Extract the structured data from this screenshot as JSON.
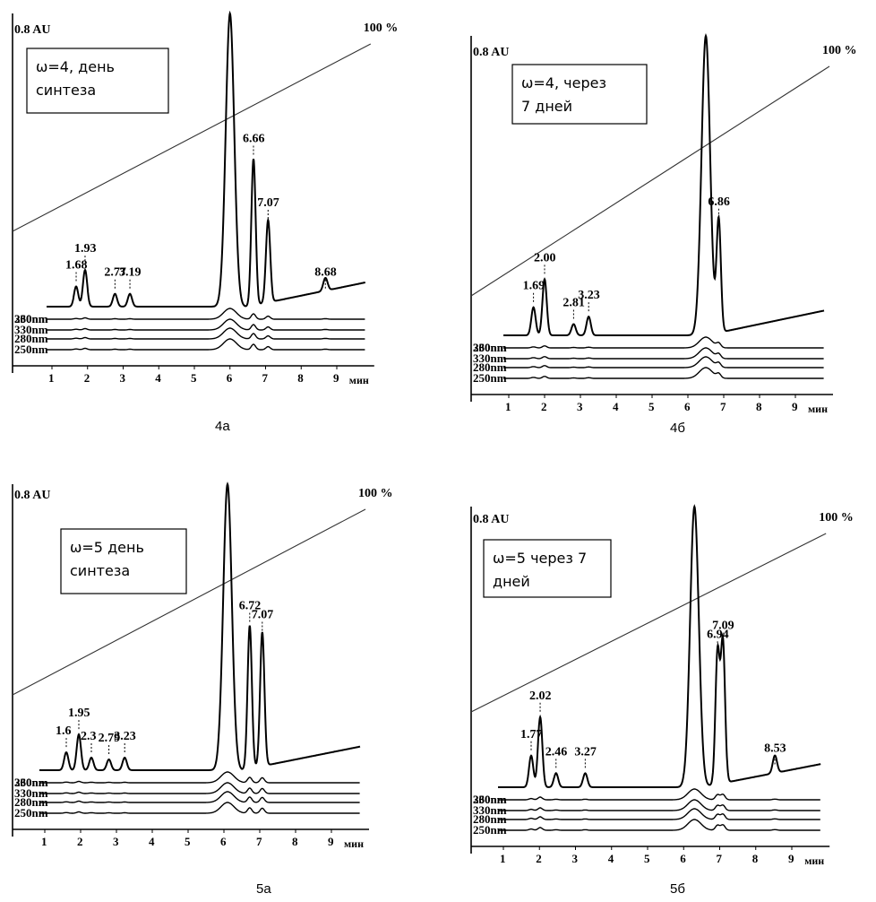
{
  "chart_data": [
    {
      "type": "line",
      "caption": "4а",
      "legend": [
        "ω=4, день",
        "синтеза"
      ],
      "y_label": "0.8 AU",
      "gradient_label": "100 %",
      "x_unit": "мин",
      "x_ticks": [
        "1",
        "2",
        "3",
        "4",
        "5",
        "6",
        "7",
        "8",
        "9"
      ],
      "trace_labels": [
        "230nm",
        "250nm",
        "280nm",
        "330nm",
        "360nm"
      ],
      "peaks": [
        {
          "t": 1.68,
          "label": "1.68",
          "h": 0.11
        },
        {
          "t": 1.93,
          "label": "1.93",
          "h": 0.2
        },
        {
          "t": 2.77,
          "label": "2.77",
          "h": 0.07
        },
        {
          "t": 3.19,
          "label": "3.19",
          "h": 0.07
        },
        {
          "t": 6.0,
          "label": "",
          "h": 1.6
        },
        {
          "t": 6.66,
          "label": "6.66",
          "h": 0.8
        },
        {
          "t": 7.07,
          "label": "7.07",
          "h": 0.45
        },
        {
          "t": 8.68,
          "label": "8.68",
          "h": 0.07
        }
      ]
    },
    {
      "type": "line",
      "caption": "4б",
      "legend": [
        "ω=4, через",
        "7 дней"
      ],
      "y_label": "0.8 AU",
      "gradient_label": "100 %",
      "x_unit": "мин",
      "x_ticks": [
        "1",
        "2",
        "3",
        "4",
        "5",
        "6",
        "7",
        "8",
        "9"
      ],
      "trace_labels": [
        "230nm",
        "250nm",
        "280nm",
        "330nm",
        "360nm"
      ],
      "peaks": [
        {
          "t": 1.69,
          "label": "1.69",
          "h": 0.15
        },
        {
          "t": 2.0,
          "label": "2.00",
          "h": 0.3
        },
        {
          "t": 2.81,
          "label": "2.81",
          "h": 0.06
        },
        {
          "t": 3.23,
          "label": "3.23",
          "h": 0.1
        },
        {
          "t": 6.5,
          "label": "",
          "h": 1.6
        },
        {
          "t": 6.86,
          "label": "6.86",
          "h": 0.6
        }
      ]
    },
    {
      "type": "line",
      "caption": "5а",
      "legend": [
        "ω=5 день",
        "синтеза"
      ],
      "y_label": "0.8 AU",
      "gradient_label": "100 %",
      "x_unit": "мин",
      "x_ticks": [
        "1",
        "2",
        "3",
        "4",
        "5",
        "6",
        "7",
        "8",
        "9"
      ],
      "trace_labels": [
        "230nm",
        "250nm",
        "280nm",
        "330nm",
        "360nm"
      ],
      "peaks": [
        {
          "t": 1.6,
          "label": "1.6",
          "h": 0.1
        },
        {
          "t": 1.95,
          "label": "1.95",
          "h": 0.2
        },
        {
          "t": 2.3,
          "label": "2.3",
          "h": 0.07
        },
        {
          "t": 2.79,
          "label": "2.79",
          "h": 0.06
        },
        {
          "t": 3.23,
          "label": "3.23",
          "h": 0.07
        },
        {
          "t": 6.1,
          "label": "",
          "h": 1.6
        },
        {
          "t": 6.72,
          "label": "6.72",
          "h": 0.8
        },
        {
          "t": 7.07,
          "label": "7.07",
          "h": 0.75
        }
      ]
    },
    {
      "type": "line",
      "caption": "5б",
      "legend": [
        "ω=5 через 7",
        "дней"
      ],
      "y_label": "0.8 AU",
      "gradient_label": "100 %",
      "x_unit": "мин",
      "x_ticks": [
        "1",
        "2",
        "3",
        "4",
        "5",
        "6",
        "7",
        "8",
        "9"
      ],
      "trace_labels": [
        "230nm",
        "250nm",
        "280nm",
        "330nm",
        "360nm"
      ],
      "peaks": [
        {
          "t": 1.77,
          "label": "1.77",
          "h": 0.18
        },
        {
          "t": 2.02,
          "label": "2.02",
          "h": 0.4
        },
        {
          "t": 2.46,
          "label": "2.46",
          "h": 0.08
        },
        {
          "t": 3.27,
          "label": "3.27",
          "h": 0.08
        },
        {
          "t": 6.3,
          "label": "",
          "h": 1.6
        },
        {
          "t": 6.94,
          "label": "6.94",
          "h": 0.75
        },
        {
          "t": 7.09,
          "label": "7.09",
          "h": 0.8
        },
        {
          "t": 8.53,
          "label": "8.53",
          "h": 0.1
        }
      ]
    }
  ]
}
